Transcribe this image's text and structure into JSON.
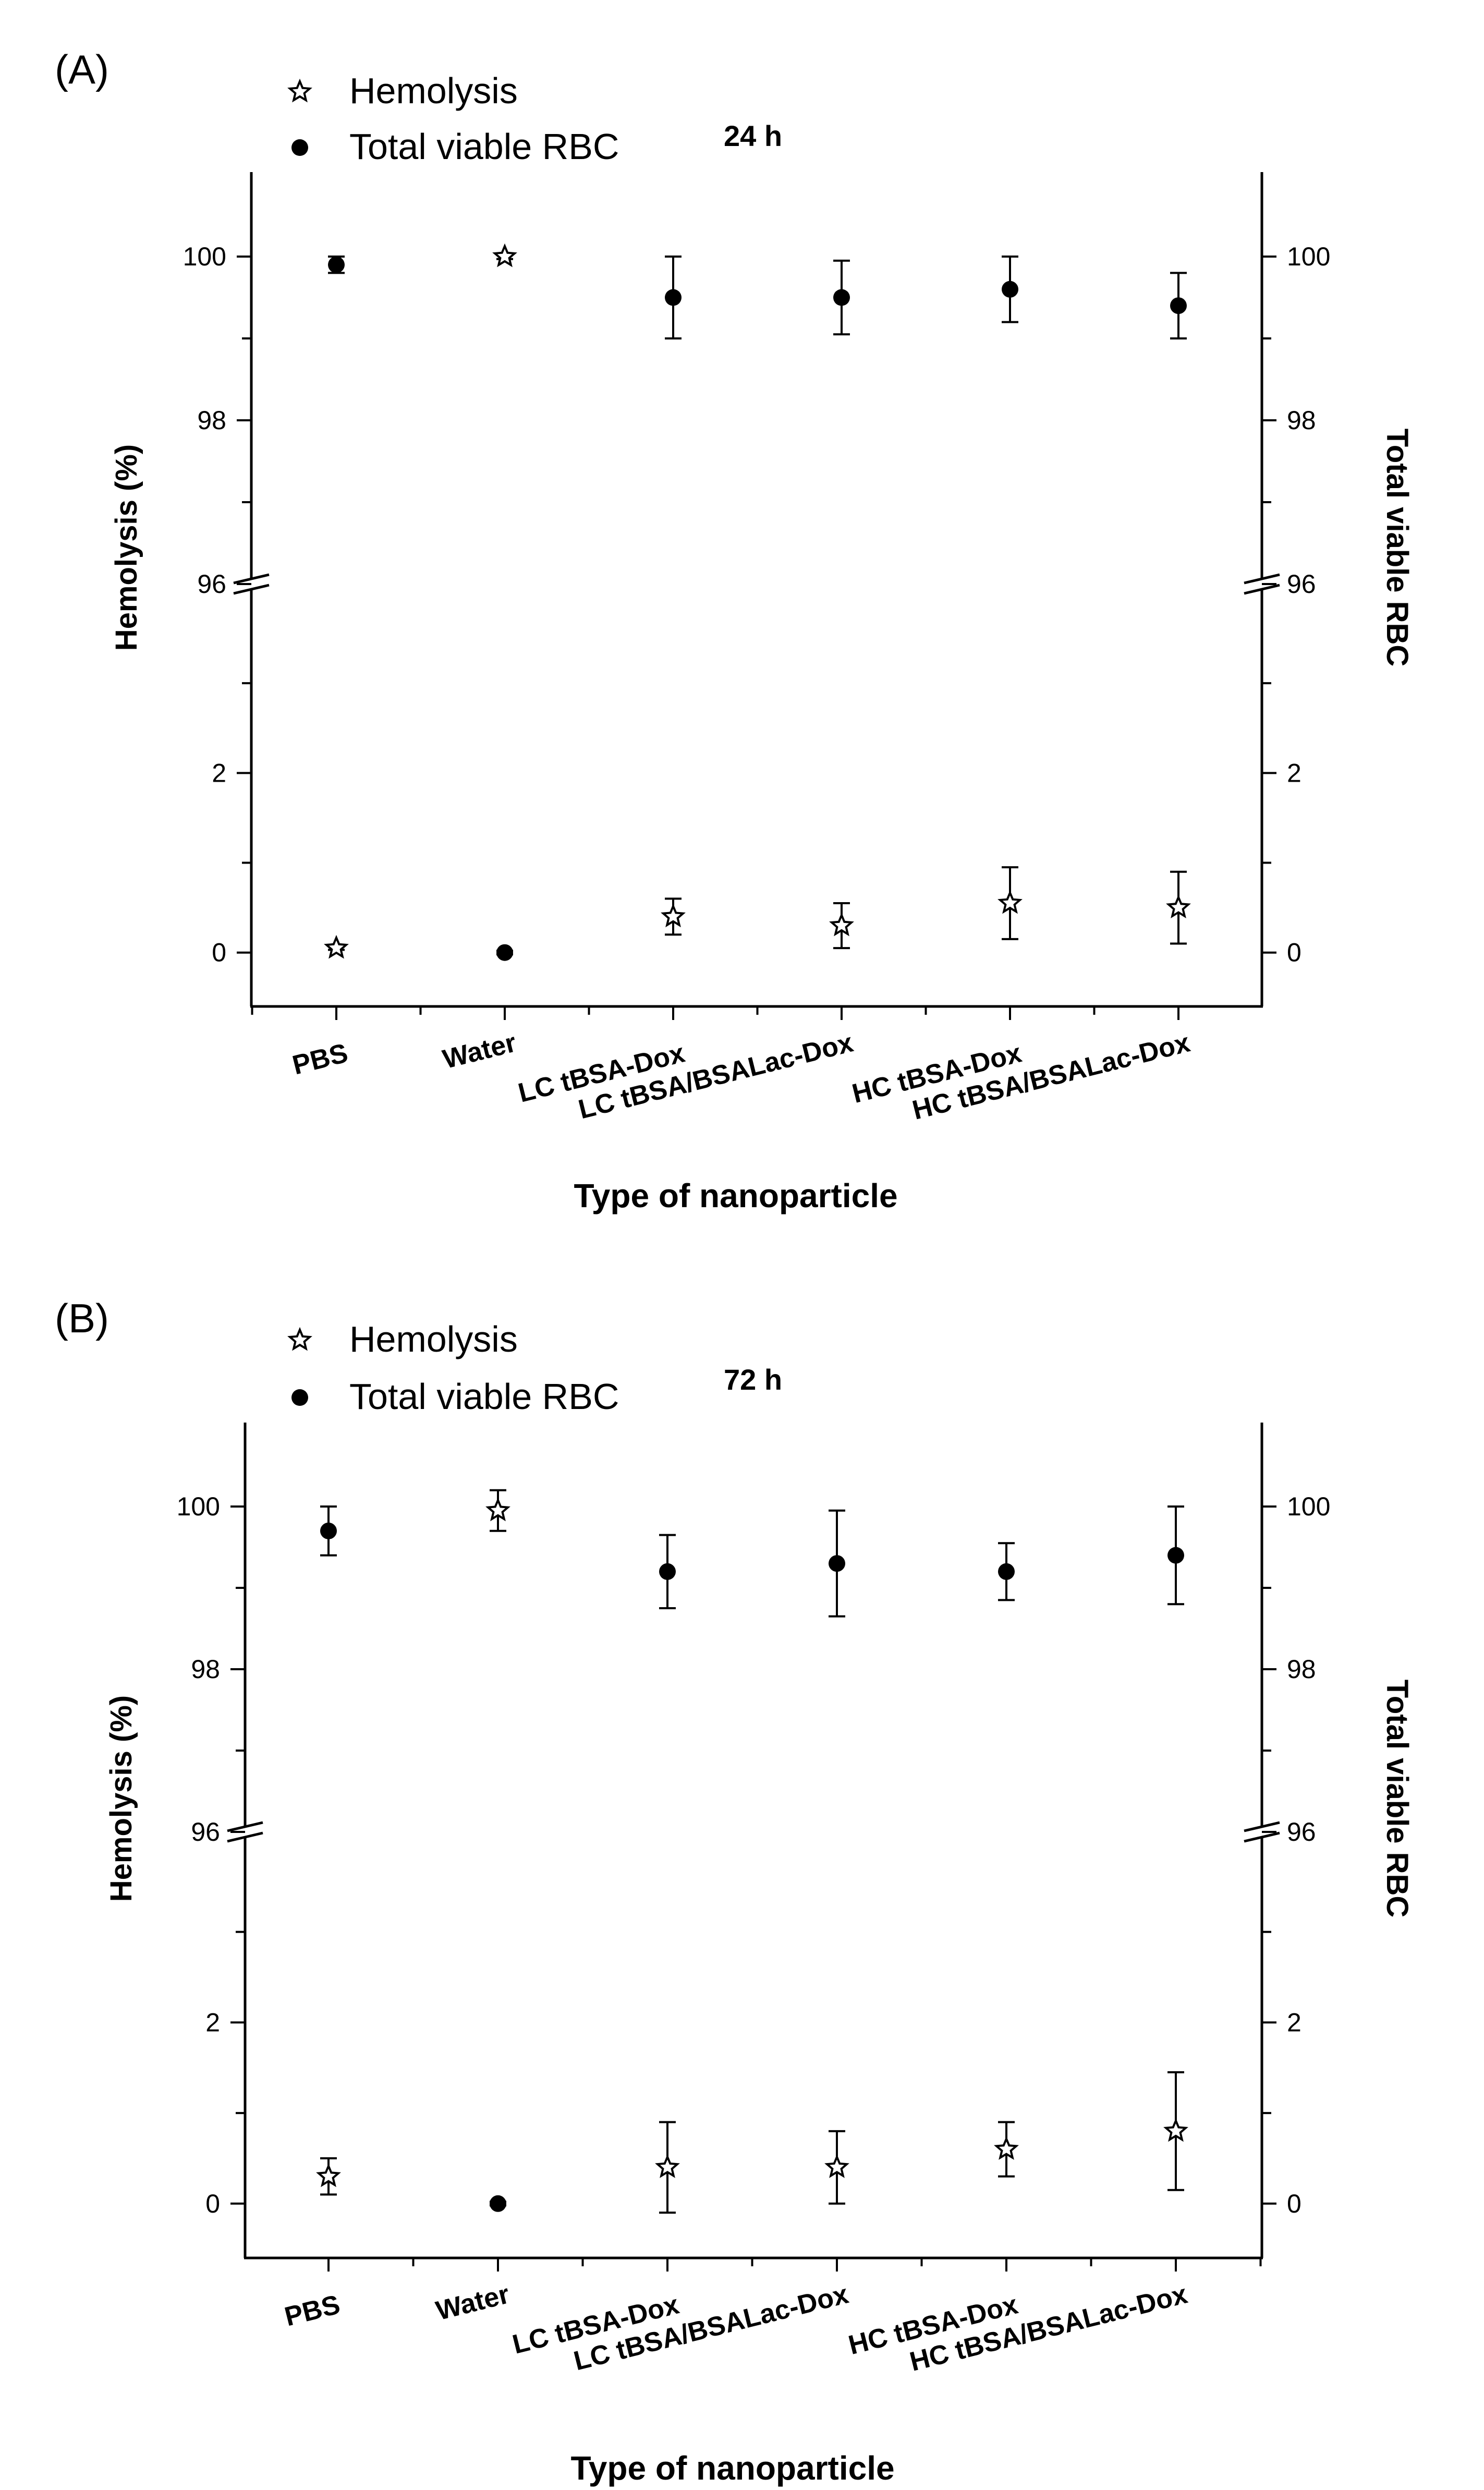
{
  "chart_data": [
    {
      "type": "scatter",
      "panel_label": "(A)",
      "time_label": "24 h",
      "xlabel": "Type of nanoparticle",
      "ylabel": "Hemolysis (%)",
      "ylabel_right": "Total viable RBC",
      "categories": [
        "PBS",
        "Water",
        "LC tBSA-Dox",
        "LC tBSA/BSALac-Dox",
        "HC tBSA-Dox",
        "HC tBSA/BSALac-Dox"
      ],
      "y_axis_break": {
        "lower_range": [
          -0.6,
          4.0
        ],
        "upper_range": [
          96,
          101
        ],
        "break_at": 96
      },
      "yticks_left": [
        0,
        2,
        96,
        98,
        100
      ],
      "yticks_right": [
        0,
        2,
        96,
        98,
        100
      ],
      "legend": [
        {
          "name": "Hemolysis",
          "marker": "star"
        },
        {
          "name": "Total viable RBC",
          "marker": "circle"
        }
      ],
      "series": [
        {
          "name": "Hemolysis",
          "marker": "star",
          "values": [
            0.05,
            100.0,
            0.4,
            0.3,
            0.55,
            0.5
          ],
          "errors": [
            0.02,
            0.03,
            0.2,
            0.25,
            0.4,
            0.4
          ]
        },
        {
          "name": "Total viable RBC",
          "marker": "circle",
          "values": [
            99.9,
            0.0,
            99.5,
            99.5,
            99.6,
            99.4
          ],
          "errors": [
            0.1,
            0.02,
            0.5,
            0.45,
            0.4,
            0.4
          ]
        }
      ]
    },
    {
      "type": "scatter",
      "panel_label": "(B)",
      "time_label": "72 h",
      "xlabel": "Type of nanoparticle",
      "ylabel": "Hemolysis (%)",
      "ylabel_right": "Total viable RBC",
      "categories": [
        "PBS",
        "Water",
        "LC tBSA-Dox",
        "LC tBSA/BSALac-Dox",
        "HC tBSA-Dox",
        "HC tBSA/BSALac-Dox"
      ],
      "y_axis_break": {
        "lower_range": [
          -0.6,
          4.0
        ],
        "upper_range": [
          96,
          101
        ],
        "break_at": 96
      },
      "yticks_left": [
        0,
        2,
        96,
        98,
        100
      ],
      "yticks_right": [
        0,
        2,
        96,
        98,
        100
      ],
      "legend": [
        {
          "name": "Hemolysis",
          "marker": "star"
        },
        {
          "name": "Total viable RBC",
          "marker": "circle"
        }
      ],
      "series": [
        {
          "name": "Hemolysis",
          "marker": "star",
          "values": [
            0.3,
            99.95,
            0.4,
            0.4,
            0.6,
            0.8
          ],
          "errors": [
            0.2,
            0.25,
            0.5,
            0.4,
            0.3,
            0.65
          ]
        },
        {
          "name": "Total viable RBC",
          "marker": "circle",
          "values": [
            99.7,
            0.0,
            99.2,
            99.3,
            99.2,
            99.4
          ],
          "errors": [
            0.3,
            0.02,
            0.45,
            0.65,
            0.35,
            0.6
          ]
        }
      ]
    }
  ]
}
